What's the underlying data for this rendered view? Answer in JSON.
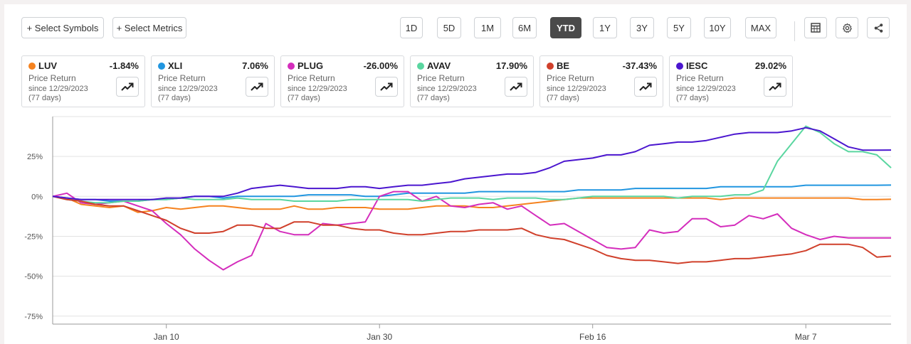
{
  "toolbar": {
    "select_symbols": "+ Select Symbols",
    "select_metrics": "+ Select Metrics",
    "ranges": [
      "1D",
      "5D",
      "1M",
      "6M",
      "YTD",
      "1Y",
      "3Y",
      "5Y",
      "10Y",
      "MAX"
    ],
    "active_range": "YTD",
    "icons": [
      "table-icon",
      "gear-icon",
      "share-icon"
    ]
  },
  "cards": [
    {
      "symbol": "LUV",
      "value": "-1.84%",
      "metric": "Price Return",
      "since": "since 12/29/2023",
      "days": "(77 days)",
      "color": "#f5821f"
    },
    {
      "symbol": "XLI",
      "value": "7.06%",
      "metric": "Price Return",
      "since": "since 12/29/2023",
      "days": "(77 days)",
      "color": "#2196e0"
    },
    {
      "symbol": "PLUG",
      "value": "-26.00%",
      "metric": "Price Return",
      "since": "since 12/29/2023",
      "days": "(77 days)",
      "color": "#d42dbc"
    },
    {
      "symbol": "AVAV",
      "value": "17.90%",
      "metric": "Price Return",
      "since": "since 12/29/2023",
      "days": "(77 days)",
      "color": "#5ad6a0"
    },
    {
      "symbol": "BE",
      "value": "-37.43%",
      "metric": "Price Return",
      "since": "since 12/29/2023",
      "days": "(77 days)",
      "color": "#d0402b"
    },
    {
      "symbol": "IESC",
      "value": "29.02%",
      "metric": "Price Return",
      "since": "since 12/29/2023",
      "days": "(77 days)",
      "color": "#4b16cf"
    }
  ],
  "chart_data": {
    "type": "line",
    "x": [
      0,
      1,
      2,
      3,
      4,
      5,
      6,
      7,
      8,
      9,
      10,
      11,
      12,
      13,
      14,
      15,
      16,
      17,
      18,
      19,
      20,
      21,
      22,
      23,
      24,
      25,
      26,
      27,
      28,
      29,
      30,
      31,
      32,
      33,
      34,
      35,
      36,
      37,
      38,
      39,
      40,
      41,
      42,
      43,
      44,
      45,
      46,
      47,
      48,
      49,
      50,
      51,
      52,
      53,
      54,
      55,
      56,
      57,
      58,
      59
    ],
    "xticks": [
      {
        "i": 8,
        "label": "Jan 10"
      },
      {
        "i": 23,
        "label": "Jan 30"
      },
      {
        "i": 38,
        "label": "Feb 16"
      },
      {
        "i": 53,
        "label": "Mar 7"
      }
    ],
    "ylim": [
      -80,
      50
    ],
    "yticks": [
      {
        "v": 25,
        "label": "25%"
      },
      {
        "v": 0,
        "label": "0%"
      },
      {
        "v": -25,
        "label": "-25%"
      },
      {
        "v": -50,
        "label": "-50%"
      },
      {
        "v": -75,
        "label": "-75%"
      }
    ],
    "grid": true,
    "series": [
      {
        "name": "LUV",
        "color": "#f5821f",
        "values": [
          0,
          -1,
          -5,
          -6,
          -7,
          -6,
          -10,
          -9,
          -7,
          -8,
          -7,
          -6,
          -6,
          -7,
          -8,
          -8,
          -8,
          -6,
          -8,
          -8,
          -7,
          -7,
          -7,
          -8,
          -8,
          -8,
          -7,
          -6,
          -6,
          -6,
          -7,
          -7,
          -6,
          -5,
          -4,
          -3,
          -2,
          -1,
          -1,
          -1,
          -1,
          -1,
          -1,
          -1,
          -1,
          -1,
          -1,
          -2,
          -1,
          -1,
          -1,
          -1,
          -1,
          -1,
          -1,
          -1,
          -1,
          -2,
          -2,
          -1.84
        ]
      },
      {
        "name": "XLI",
        "color": "#2196e0",
        "values": [
          0,
          -1,
          -2,
          -2,
          -3,
          -3,
          -3,
          -2,
          -2,
          -1,
          0,
          0,
          -1,
          0,
          0,
          0,
          0,
          0,
          1,
          1,
          1,
          1,
          0,
          0,
          1,
          2,
          2,
          2,
          2,
          2,
          3,
          3,
          3,
          3,
          3,
          3,
          3,
          4,
          4,
          4,
          4,
          5,
          5,
          5,
          5,
          5,
          5,
          6,
          6,
          6,
          6,
          6,
          6,
          7,
          7,
          7,
          7,
          7,
          7,
          7.06
        ]
      },
      {
        "name": "PLUG",
        "color": "#d42dbc",
        "values": [
          0,
          2,
          -4,
          -5,
          -4,
          -3,
          -6,
          -9,
          -17,
          -24,
          -33,
          -40,
          -46,
          -41,
          -37,
          -17,
          -22,
          -24,
          -24,
          -17,
          -18,
          -17,
          -16,
          0,
          3,
          3,
          -3,
          0,
          -6,
          -7,
          -5,
          -4,
          -8,
          -6,
          -12,
          -18,
          -17,
          -22,
          -27,
          -32,
          -33,
          -32,
          -21,
          -23,
          -22,
          -14,
          -14,
          -19,
          -18,
          -12,
          -14,
          -11,
          -20,
          -24,
          -27,
          -25,
          -26,
          -26,
          -26,
          -26.0
        ]
      },
      {
        "name": "AVAV",
        "color": "#5ad6a0",
        "values": [
          0,
          -2,
          -3,
          -4,
          -4,
          -3,
          -3,
          -2,
          -2,
          -1,
          -2,
          -2,
          -2,
          -1,
          -2,
          -2,
          -2,
          -3,
          -3,
          -3,
          -3,
          -2,
          -2,
          -2,
          -2,
          -2,
          -3,
          -2,
          -1,
          -1,
          -1,
          -2,
          -1,
          -1,
          -1,
          -2,
          -2,
          -1,
          0,
          0,
          0,
          0,
          0,
          0,
          -1,
          0,
          0,
          0,
          1,
          1,
          4,
          22,
          33,
          44,
          40,
          33,
          28,
          28,
          26,
          17.9
        ]
      },
      {
        "name": "BE",
        "color": "#d0402b",
        "values": [
          0,
          -2,
          -3,
          -5,
          -6,
          -6,
          -9,
          -12,
          -15,
          -20,
          -23,
          -23,
          -22,
          -18,
          -18,
          -20,
          -20,
          -16,
          -16,
          -18,
          -18,
          -20,
          -21,
          -21,
          -23,
          -24,
          -24,
          -23,
          -22,
          -22,
          -21,
          -21,
          -21,
          -20,
          -24,
          -26,
          -27,
          -30,
          -33,
          -37,
          -39,
          -40,
          -40,
          -41,
          -42,
          -41,
          -41,
          -40,
          -39,
          -39,
          -38,
          -37,
          -36,
          -34,
          -30,
          -30,
          -30,
          -32,
          -38,
          -37.43
        ]
      },
      {
        "name": "IESC",
        "color": "#4b16cf",
        "values": [
          0,
          -1,
          -2,
          -2,
          -2,
          -2,
          -2,
          -2,
          -1,
          -1,
          0,
          0,
          0,
          2,
          5,
          6,
          7,
          6,
          5,
          5,
          5,
          6,
          6,
          5,
          6,
          7,
          7,
          8,
          9,
          11,
          12,
          13,
          14,
          14,
          15,
          18,
          22,
          23,
          24,
          26,
          26,
          28,
          32,
          33,
          34,
          34,
          35,
          37,
          39,
          40,
          40,
          40,
          41,
          43,
          41,
          36,
          31,
          29,
          29,
          29.02
        ]
      }
    ]
  }
}
